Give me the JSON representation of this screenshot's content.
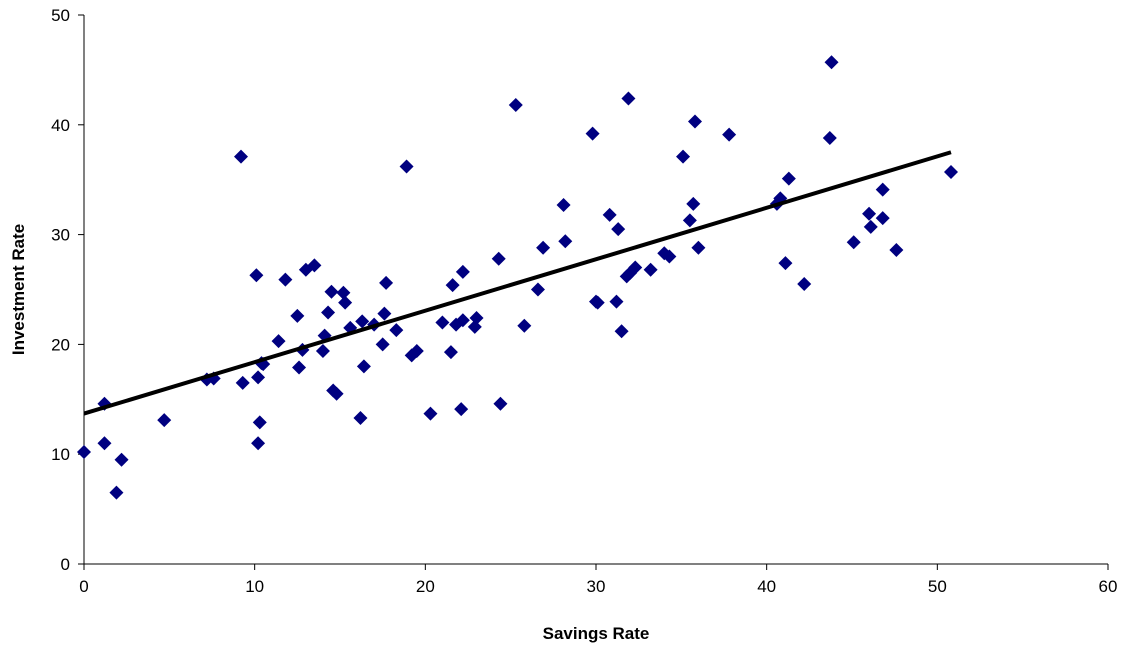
{
  "chart_data": {
    "type": "scatter",
    "title": "",
    "xlabel": "Savings Rate",
    "ylabel": "Investment Rate",
    "xlim": [
      0,
      60
    ],
    "ylim": [
      0,
      50
    ],
    "x_ticks": [
      0,
      10,
      20,
      30,
      40,
      50,
      60
    ],
    "y_ticks": [
      0,
      10,
      20,
      30,
      40,
      50
    ],
    "grid": false,
    "legend": "none",
    "marker": "diamond",
    "colors": {
      "points": "#000080",
      "trendline": "#000000"
    },
    "trendline": {
      "type": "linear",
      "x": [
        0,
        50.8
      ],
      "y": [
        13.7,
        37.5
      ]
    },
    "points": [
      [
        0.0,
        10.2
      ],
      [
        1.2,
        14.6
      ],
      [
        1.2,
        11.0
      ],
      [
        1.9,
        6.5
      ],
      [
        2.2,
        9.5
      ],
      [
        4.7,
        13.1
      ],
      [
        7.2,
        16.8
      ],
      [
        7.6,
        16.9
      ],
      [
        9.2,
        37.1
      ],
      [
        9.3,
        16.5
      ],
      [
        10.1,
        26.3
      ],
      [
        10.2,
        17.0
      ],
      [
        10.2,
        11.0
      ],
      [
        10.3,
        12.9
      ],
      [
        10.4,
        18.3
      ],
      [
        10.5,
        18.2
      ],
      [
        11.4,
        20.3
      ],
      [
        11.8,
        25.9
      ],
      [
        12.5,
        22.6
      ],
      [
        12.6,
        17.9
      ],
      [
        12.8,
        19.5
      ],
      [
        13.0,
        26.8
      ],
      [
        13.5,
        27.2
      ],
      [
        14.0,
        19.4
      ],
      [
        14.1,
        20.8
      ],
      [
        14.3,
        22.9
      ],
      [
        14.5,
        24.8
      ],
      [
        14.6,
        15.8
      ],
      [
        14.8,
        15.5
      ],
      [
        15.2,
        24.7
      ],
      [
        15.3,
        23.8
      ],
      [
        15.6,
        21.5
      ],
      [
        16.2,
        13.3
      ],
      [
        16.3,
        22.1
      ],
      [
        16.4,
        18.0
      ],
      [
        17.0,
        21.8
      ],
      [
        17.5,
        20.0
      ],
      [
        17.6,
        22.8
      ],
      [
        17.7,
        25.6
      ],
      [
        18.3,
        21.3
      ],
      [
        18.9,
        36.2
      ],
      [
        19.2,
        19.0
      ],
      [
        19.5,
        19.4
      ],
      [
        20.3,
        13.7
      ],
      [
        21.0,
        22.0
      ],
      [
        21.5,
        19.3
      ],
      [
        21.6,
        25.4
      ],
      [
        21.8,
        21.8
      ],
      [
        22.1,
        14.1
      ],
      [
        22.2,
        26.6
      ],
      [
        22.2,
        22.2
      ],
      [
        22.9,
        21.6
      ],
      [
        23.0,
        22.4
      ],
      [
        24.3,
        27.8
      ],
      [
        24.4,
        14.6
      ],
      [
        25.3,
        41.8
      ],
      [
        25.8,
        21.7
      ],
      [
        26.6,
        25.0
      ],
      [
        26.9,
        28.8
      ],
      [
        28.1,
        32.7
      ],
      [
        28.2,
        29.4
      ],
      [
        29.8,
        39.2
      ],
      [
        30.0,
        23.9
      ],
      [
        30.1,
        23.8
      ],
      [
        30.8,
        31.8
      ],
      [
        31.2,
        23.9
      ],
      [
        31.3,
        30.5
      ],
      [
        31.5,
        21.2
      ],
      [
        31.8,
        26.2
      ],
      [
        31.9,
        42.4
      ],
      [
        32.0,
        26.5
      ],
      [
        32.3,
        27.0
      ],
      [
        33.2,
        26.8
      ],
      [
        34.0,
        28.3
      ],
      [
        34.3,
        28.0
      ],
      [
        35.1,
        37.1
      ],
      [
        35.5,
        31.3
      ],
      [
        35.7,
        32.8
      ],
      [
        35.8,
        40.3
      ],
      [
        36.0,
        28.8
      ],
      [
        37.8,
        39.1
      ],
      [
        40.6,
        32.8
      ],
      [
        40.8,
        33.3
      ],
      [
        41.1,
        27.4
      ],
      [
        41.3,
        35.1
      ],
      [
        42.2,
        25.5
      ],
      [
        43.7,
        38.8
      ],
      [
        43.8,
        45.7
      ],
      [
        45.1,
        29.3
      ],
      [
        46.0,
        31.9
      ],
      [
        46.1,
        30.7
      ],
      [
        46.8,
        34.1
      ],
      [
        46.8,
        31.5
      ],
      [
        47.6,
        28.6
      ],
      [
        50.8,
        35.7
      ]
    ]
  }
}
